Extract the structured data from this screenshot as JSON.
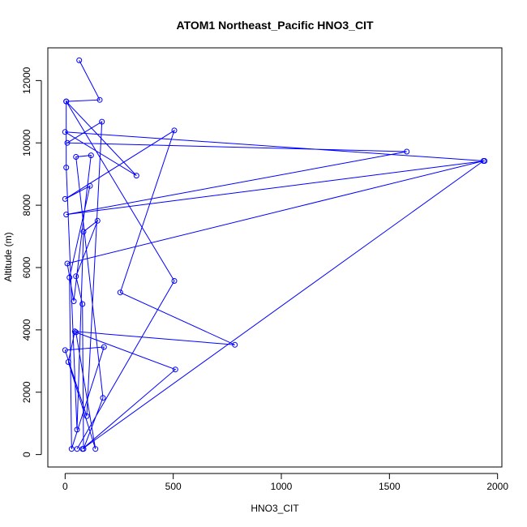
{
  "chart_data": {
    "type": "line",
    "title": "ATOM1 Northeast_Pacific HNO3_CIT",
    "xlabel": "HNO3_CIT",
    "ylabel": "Altitude (m)",
    "xlim": [
      -80,
      2020
    ],
    "ylim": [
      -400,
      13050
    ],
    "xticks": [
      0,
      500,
      1000,
      1500,
      2000
    ],
    "yticks": [
      0,
      2000,
      4000,
      6000,
      8000,
      10000,
      12000
    ],
    "grid": false,
    "color": "#0000ff",
    "series": [
      {
        "points": [
          [
            65,
            12650
          ],
          [
            160,
            11380
          ],
          [
            5,
            11330
          ],
          [
            330,
            8950
          ],
          [
            0,
            10350
          ],
          [
            1940,
            9420
          ],
          [
            5,
            7700
          ],
          [
            1580,
            9720
          ],
          [
            10,
            10000
          ],
          [
            170,
            10680
          ],
          [
            100,
            1230
          ],
          [
            0,
            3350
          ],
          [
            180,
            3450
          ],
          [
            30,
            180
          ],
          [
            20,
            5680
          ],
          [
            115,
            8620
          ],
          [
            0,
            8200
          ],
          [
            505,
            10400
          ],
          [
            255,
            5200
          ],
          [
            785,
            3520
          ],
          [
            45,
            3950
          ],
          [
            15,
            2970
          ],
          [
            140,
            180
          ],
          [
            50,
            3920
          ],
          [
            510,
            2730
          ],
          [
            80,
            180
          ],
          [
            1935,
            9420
          ],
          [
            10,
            6130
          ],
          [
            40,
            4920
          ],
          [
            120,
            9600
          ],
          [
            50,
            9550
          ],
          [
            175,
            1820
          ],
          [
            85,
            180
          ],
          [
            80,
            4830
          ],
          [
            50,
            5720
          ],
          [
            150,
            7500
          ],
          [
            85,
            7150
          ],
          [
            55,
            800
          ],
          [
            5,
            9210
          ],
          [
            5,
            11330
          ],
          [
            505,
            5570
          ],
          [
            55,
            180
          ]
        ]
      }
    ]
  }
}
